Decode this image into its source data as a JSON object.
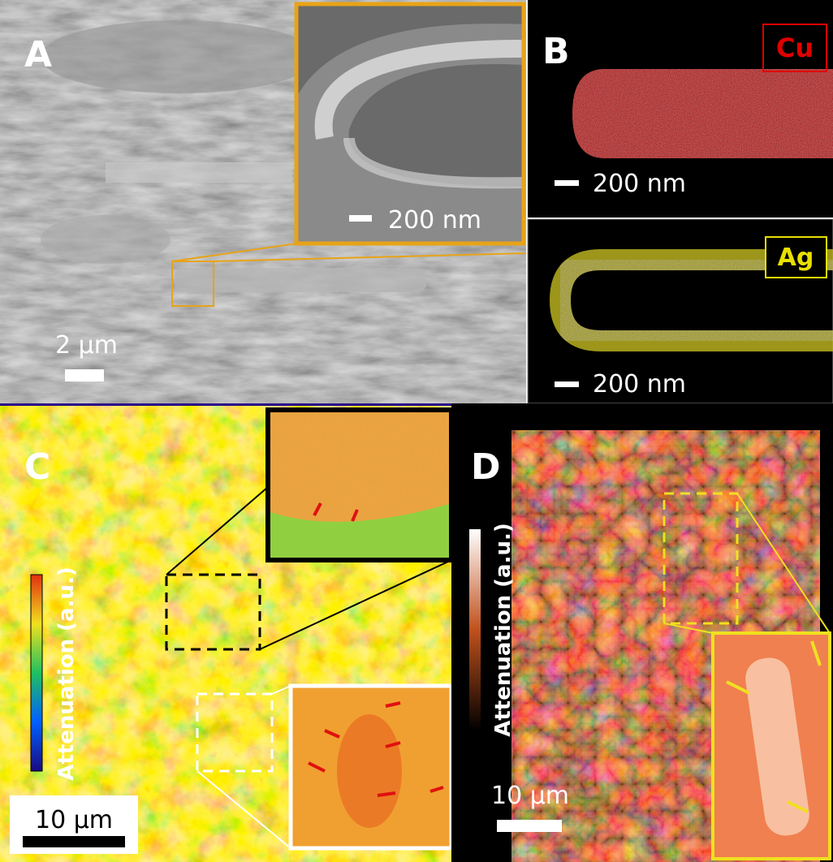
{
  "panels": {
    "A": {
      "label": "A",
      "scale_bar": "2 µm",
      "inset_scale_bar": "200 nm"
    },
    "B": {
      "label": "B",
      "cu": {
        "element": "Cu",
        "scale_bar": "200 nm"
      },
      "ag": {
        "element": "Ag",
        "scale_bar": "200 nm"
      }
    },
    "C": {
      "label": "C",
      "colorbar_label": "Attenuation (a.u.)",
      "scale_bar": "10 µm"
    },
    "D": {
      "label": "D",
      "colorbar_label": "Attenuation (a.u.)",
      "scale_bar": "10 µm"
    }
  }
}
